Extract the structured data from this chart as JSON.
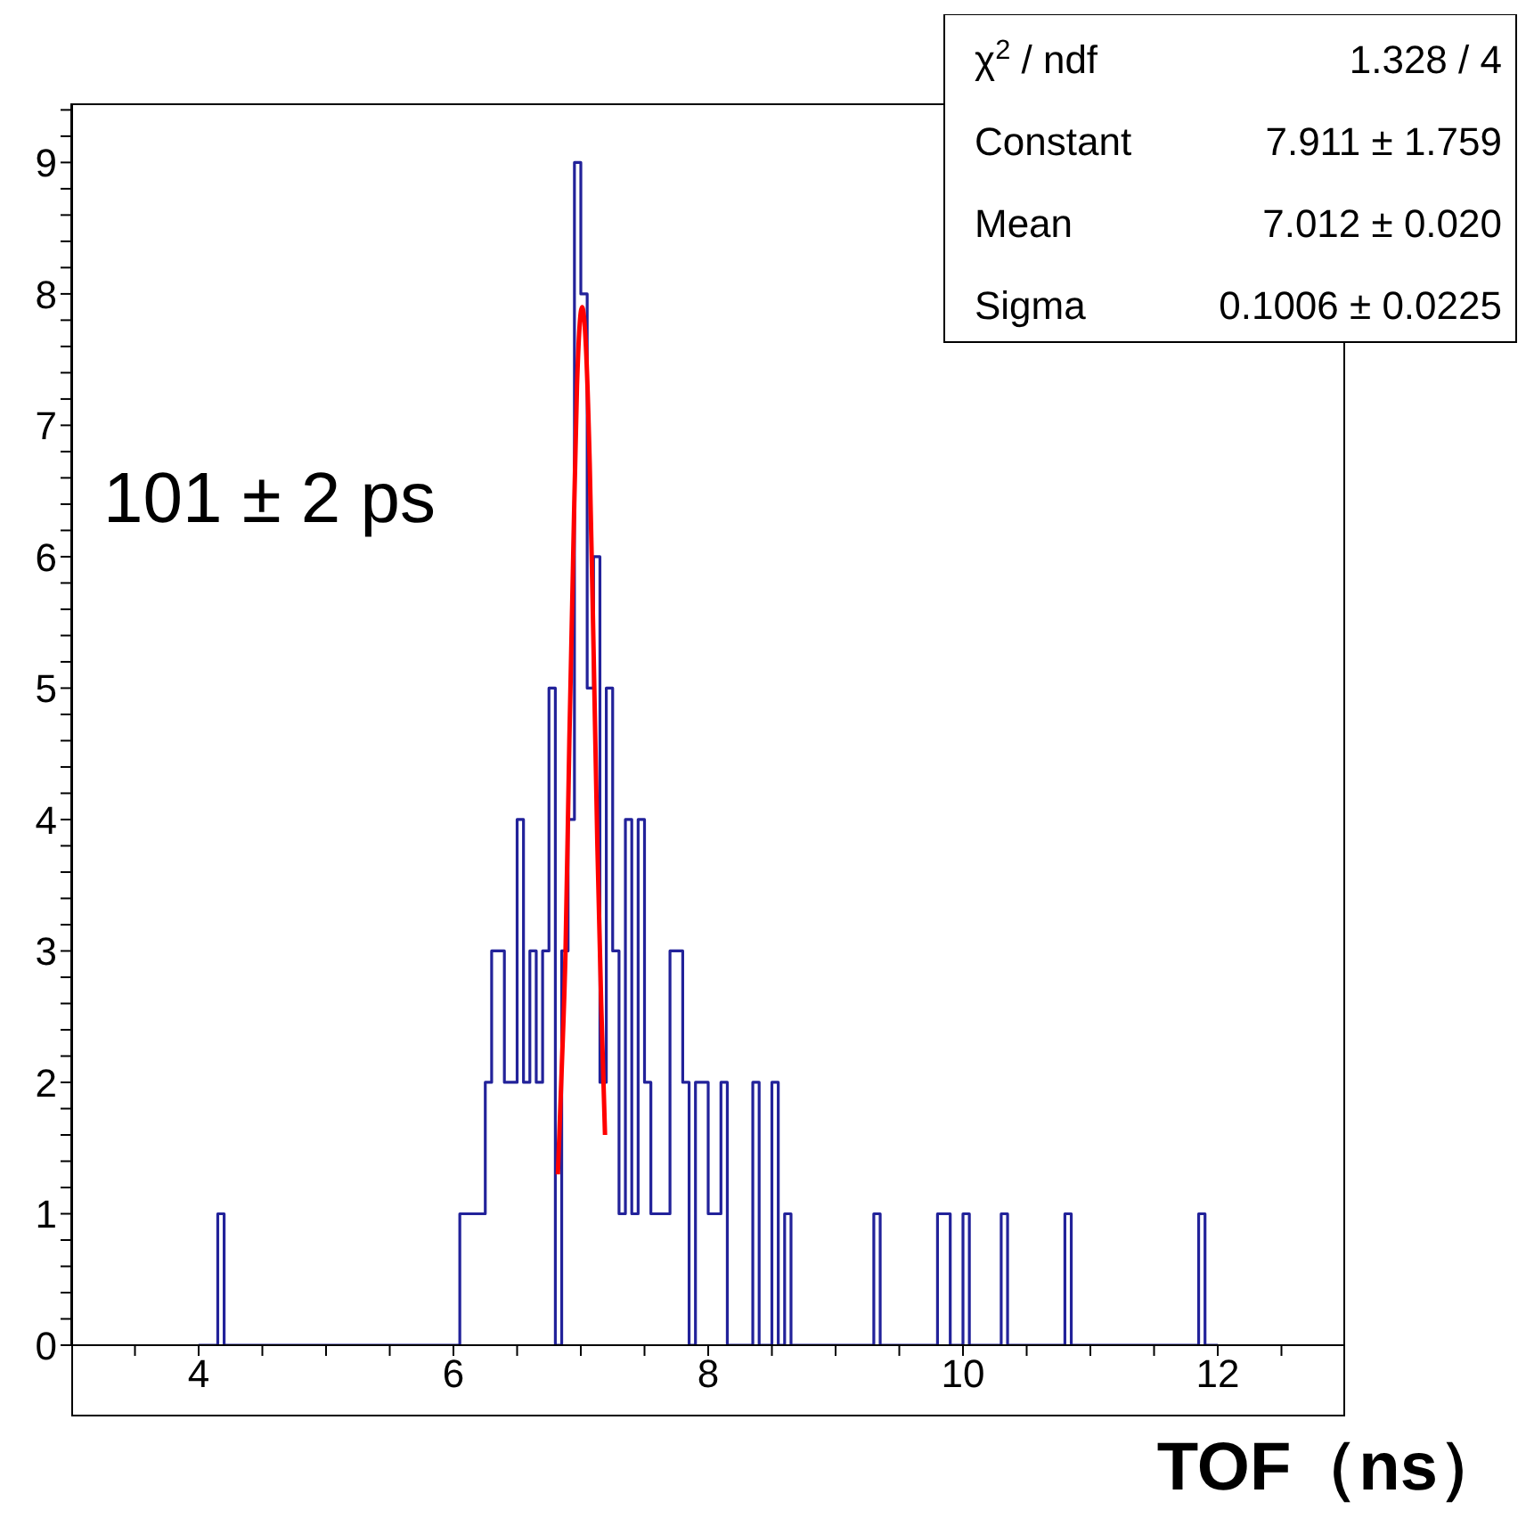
{
  "chart_data": {
    "type": "histogram",
    "xlabel": "TOF（ns）",
    "xlim": [
      3,
      13
    ],
    "ylim": [
      0,
      9.45
    ],
    "xticks": [
      {
        "value": 3.5,
        "label": null
      },
      4,
      {
        "value": 4.5,
        "label": null
      },
      {
        "value": 5,
        "label": null
      },
      {
        "value": 5.5,
        "label": null
      },
      6,
      {
        "value": 6.5,
        "label": null
      },
      {
        "value": 7,
        "label": null
      },
      {
        "value": 7.5,
        "label": null
      },
      8,
      {
        "value": 8.5,
        "label": null
      },
      {
        "value": 9,
        "label": null
      },
      {
        "value": 9.5,
        "label": null
      },
      10,
      {
        "value": 10.5,
        "label": null
      },
      {
        "value": 11,
        "label": null
      },
      {
        "value": 11.5,
        "label": null
      },
      12,
      {
        "value": 12.5,
        "label": null
      }
    ],
    "yticks": [
      0,
      {
        "value": 0.2,
        "label": null
      },
      {
        "value": 0.4,
        "label": null
      },
      {
        "value": 0.6,
        "label": null
      },
      {
        "value": 0.8,
        "label": null
      },
      1,
      {
        "value": 1.2,
        "label": null
      },
      {
        "value": 1.4,
        "label": null
      },
      {
        "value": 1.6,
        "label": null
      },
      {
        "value": 1.8,
        "label": null
      },
      2,
      {
        "value": 2.2,
        "label": null
      },
      {
        "value": 2.4,
        "label": null
      },
      {
        "value": 2.6,
        "label": null
      },
      {
        "value": 2.8,
        "label": null
      },
      3,
      {
        "value": 3.2,
        "label": null
      },
      {
        "value": 3.4,
        "label": null
      },
      {
        "value": 3.6,
        "label": null
      },
      {
        "value": 3.8,
        "label": null
      },
      4,
      {
        "value": 4.2,
        "label": null
      },
      {
        "value": 4.4,
        "label": null
      },
      {
        "value": 4.6,
        "label": null
      },
      {
        "value": 4.8,
        "label": null
      },
      5,
      {
        "value": 5.2,
        "label": null
      },
      {
        "value": 5.4,
        "label": null
      },
      {
        "value": 5.6,
        "label": null
      },
      {
        "value": 5.8,
        "label": null
      },
      6,
      {
        "value": 6.2,
        "label": null
      },
      {
        "value": 6.4,
        "label": null
      },
      {
        "value": 6.6,
        "label": null
      },
      {
        "value": 6.8,
        "label": null
      },
      7,
      {
        "value": 7.2,
        "label": null
      },
      {
        "value": 7.4,
        "label": null
      },
      {
        "value": 7.6,
        "label": null
      },
      {
        "value": 7.8,
        "label": null
      },
      8,
      {
        "value": 8.2,
        "label": null
      },
      {
        "value": 8.4,
        "label": null
      },
      {
        "value": 8.6,
        "label": null
      },
      {
        "value": 8.8,
        "label": null
      },
      9,
      {
        "value": 9.2,
        "label": null
      },
      {
        "value": 9.4,
        "label": null
      }
    ],
    "series": [
      {
        "color": "#22229a",
        "bins": [
          4,
          4.05,
          4.1,
          4.15,
          4.2,
          4.25,
          4.3,
          4.35,
          4.4,
          4.45,
          4.5,
          4.55,
          4.6,
          4.65,
          4.7,
          4.75,
          4.8,
          4.85,
          4.9,
          4.95,
          5,
          5.05,
          5.1,
          5.15,
          5.2,
          5.25,
          5.3,
          5.35,
          5.4,
          5.45,
          5.5,
          5.55,
          5.6,
          5.65,
          5.7,
          5.75,
          5.8,
          5.85,
          5.9,
          5.95,
          6,
          6.05,
          6.1,
          6.15,
          6.2,
          6.25,
          6.3,
          6.35,
          6.4,
          6.45,
          6.5,
          6.55,
          6.6,
          6.65,
          6.7,
          6.75,
          6.8,
          6.85,
          6.9,
          6.95,
          7,
          7.05,
          7.1,
          7.15,
          7.2,
          7.25,
          7.3,
          7.35,
          7.4,
          7.45,
          7.5,
          7.55,
          7.6,
          7.65,
          7.7,
          7.75,
          7.8,
          7.85,
          7.9,
          7.95,
          8,
          8.05,
          8.1,
          8.15,
          8.2,
          8.25,
          8.3,
          8.35,
          8.4,
          8.45,
          8.5,
          8.55,
          8.6,
          8.65,
          8.7,
          8.75,
          8.8,
          8.85,
          8.9,
          8.95,
          9,
          9.05,
          9.1,
          9.15,
          9.2,
          9.25,
          9.3,
          9.35,
          9.4,
          9.45,
          9.5,
          9.55,
          9.6,
          9.65,
          9.7,
          9.75,
          9.8,
          9.85,
          9.9,
          9.95,
          10,
          10.05,
          10.1,
          10.15,
          10.2,
          10.25,
          10.3,
          10.35,
          10.4,
          10.45,
          10.5,
          10.55,
          10.6,
          10.65,
          10.7,
          10.75,
          10.8,
          10.85,
          10.9,
          10.95,
          11,
          11.05,
          11.1,
          11.15,
          11.2,
          11.25,
          11.3,
          11.35,
          11.4,
          11.45,
          11.5,
          11.55,
          11.6,
          11.65,
          11.7,
          11.75,
          11.8,
          11.85,
          11.9,
          11.95,
          12
        ],
        "values": [
          0,
          0,
          0,
          1,
          0,
          0,
          0,
          0,
          0,
          0,
          0,
          0,
          0,
          0,
          0,
          0,
          0,
          0,
          0,
          0,
          0,
          0,
          0,
          0,
          0,
          0,
          0,
          0,
          0,
          0,
          0,
          0,
          0,
          0,
          0,
          0,
          0,
          0,
          0,
          0,
          0,
          1,
          1,
          1,
          1,
          2,
          3,
          3,
          2,
          2,
          4,
          2,
          3,
          2,
          3,
          5,
          0,
          3,
          4,
          9,
          8,
          5,
          6,
          2,
          5,
          3,
          1,
          4,
          1,
          4,
          2,
          1,
          1,
          1,
          3,
          3,
          2,
          0,
          2,
          2,
          1,
          1,
          2,
          0,
          0,
          0,
          0,
          2,
          0,
          0,
          2,
          0,
          1,
          0,
          0,
          0,
          0,
          0,
          0,
          0,
          0,
          0,
          0,
          0,
          0,
          0,
          1,
          0,
          0,
          0,
          0,
          0,
          0,
          0,
          0,
          0,
          1,
          1,
          0,
          0,
          1,
          0,
          0,
          0,
          0,
          0,
          1,
          0,
          0,
          0,
          0,
          0,
          0,
          0,
          0,
          0,
          1,
          0,
          0,
          0,
          0,
          0,
          0,
          0,
          0,
          0,
          0,
          0,
          0,
          0,
          0,
          0,
          0,
          0,
          0,
          0,
          0,
          1,
          0,
          0
        ]
      },
      {
        "type": "line",
        "color": "#ff0000",
        "x": [
          6.82,
          6.85,
          6.88,
          6.91,
          6.94,
          6.97,
          7.01,
          7.04,
          7.07,
          7.1,
          7.13,
          7.16,
          7.19
        ],
        "values": [
          1.3,
          2.1,
          3.0,
          4.6,
          6.0,
          7.3,
          7.9,
          7.6,
          6.7,
          5.3,
          3.8,
          2.6,
          1.6
        ]
      }
    ],
    "annotations": [
      "101 ± 2 ps",
      "χ$^{2}$ / ndf",
      "1.328 / 4",
      "Constant",
      "7.911 ± 1.759",
      "Mean",
      "7.012 ± 0.020",
      "Sigma",
      "0.1006 ± 0.0225"
    ]
  }
}
